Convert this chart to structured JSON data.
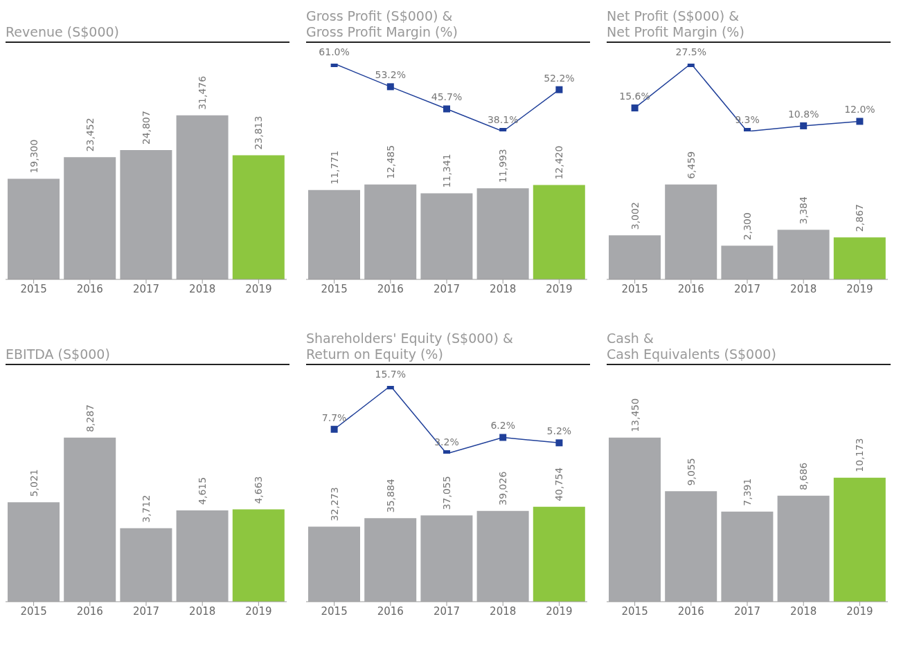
{
  "chart_data": [
    {
      "type": "bar",
      "title": "Revenue (S$000)",
      "categories": [
        "2015",
        "2016",
        "2017",
        "2018",
        "2019"
      ],
      "series": [
        {
          "values": [
            19300,
            23452,
            24807,
            31476,
            23813
          ],
          "colors": [
            "#a7a8ab",
            "#a7a8ab",
            "#a7a8ab",
            "#a7a8ab",
            "#8dc63f"
          ],
          "value_labels": [
            "19,300",
            "23,452",
            "24,807",
            "31,476",
            "23,813"
          ]
        }
      ]
    },
    {
      "type": "line",
      "title": "Gross Profit (S$000) &\nGross Profit Margin (%)",
      "categories": [
        null,
        null,
        null,
        null,
        null
      ],
      "marker": "square",
      "series": [
        {
          "color": "#1f3f99",
          "values": [
            61.0,
            53.2,
            45.7,
            38.1,
            52.2
          ],
          "value_labels": [
            "61.0%",
            "53.2%",
            "45.7%",
            "38.1%",
            "52.2%"
          ]
        }
      ]
    },
    {
      "type": "bar",
      "categories": [
        "2015",
        "2016",
        "2017",
        "2018",
        "2019"
      ],
      "series": [
        {
          "values": [
            11771,
            12485,
            11341,
            11993,
            12420
          ],
          "colors": [
            "#a7a8ab",
            "#a7a8ab",
            "#a7a8ab",
            "#a7a8ab",
            "#8dc63f"
          ],
          "value_labels": [
            "11,771",
            "12,485",
            "11,341",
            "11,993",
            "12,420"
          ]
        }
      ]
    },
    {
      "type": "line",
      "title": "Net Profit (S$000) &\nNet Profit Margin (%)",
      "categories": [
        null,
        null,
        null,
        null,
        null
      ],
      "marker": "square",
      "series": [
        {
          "color": "#1f3f99",
          "values": [
            15.6,
            27.5,
            9.3,
            10.8,
            12.0
          ],
          "value_labels": [
            "15.6%",
            "27.5%",
            "9.3%",
            "10.8%",
            "12.0%"
          ]
        }
      ]
    },
    {
      "type": "bar",
      "categories": [
        "2015",
        "2016",
        "2017",
        "2018",
        "2019"
      ],
      "series": [
        {
          "values": [
            3002,
            6459,
            2300,
            3384,
            2867
          ],
          "colors": [
            "#a7a8ab",
            "#a7a8ab",
            "#a7a8ab",
            "#a7a8ab",
            "#8dc63f"
          ],
          "value_labels": [
            "3,002",
            "6,459",
            "2,300",
            "3,384",
            "2,867"
          ]
        }
      ]
    },
    {
      "type": "bar",
      "title": "EBITDA (S$000)",
      "categories": [
        "2015",
        "2016",
        "2017",
        "2018",
        "2019"
      ],
      "series": [
        {
          "values": [
            5021,
            8287,
            3712,
            4615,
            4663
          ],
          "colors": [
            "#a7a8ab",
            "#a7a8ab",
            "#a7a8ab",
            "#a7a8ab",
            "#8dc63f"
          ],
          "value_labels": [
            "5,021",
            "8,287",
            "3,712",
            "4,615",
            "4,663"
          ]
        }
      ]
    },
    {
      "type": "line",
      "title": "Shareholders' Equity (S$000) &\nReturn on Equity (%)",
      "categories": [
        null,
        null,
        null,
        null,
        null
      ],
      "marker": "square",
      "series": [
        {
          "color": "#1f3f99",
          "values": [
            7.7,
            15.7,
            3.2,
            6.2,
            5.2
          ],
          "value_labels": [
            "7.7%",
            "15.7%",
            "3.2%",
            "6.2%",
            "5.2%"
          ]
        }
      ]
    },
    {
      "type": "bar",
      "categories": [
        "2015",
        "2016",
        "2017",
        "2018",
        "2019"
      ],
      "series": [
        {
          "values": [
            32273,
            35884,
            37055,
            39026,
            40754
          ],
          "colors": [
            "#a7a8ab",
            "#a7a8ab",
            "#a7a8ab",
            "#a7a8ab",
            "#8dc63f"
          ],
          "value_labels": [
            "32,273",
            "35,884",
            "37,055",
            "39,026",
            "40,754"
          ]
        }
      ]
    },
    {
      "type": "bar",
      "title": "Cash &\nCash Equivalents (S$000)",
      "categories": [
        "2015",
        "2016",
        "2017",
        "2018",
        "2019"
      ],
      "series": [
        {
          "values": [
            13450,
            9055,
            7391,
            8686,
            10173
          ],
          "colors": [
            "#a7a8ab",
            "#a7a8ab",
            "#a7a8ab",
            "#a7a8ab",
            "#8dc63f"
          ],
          "value_labels": [
            "13,450",
            "9,055",
            "7,391",
            "8,686",
            "10,173"
          ]
        }
      ]
    }
  ]
}
